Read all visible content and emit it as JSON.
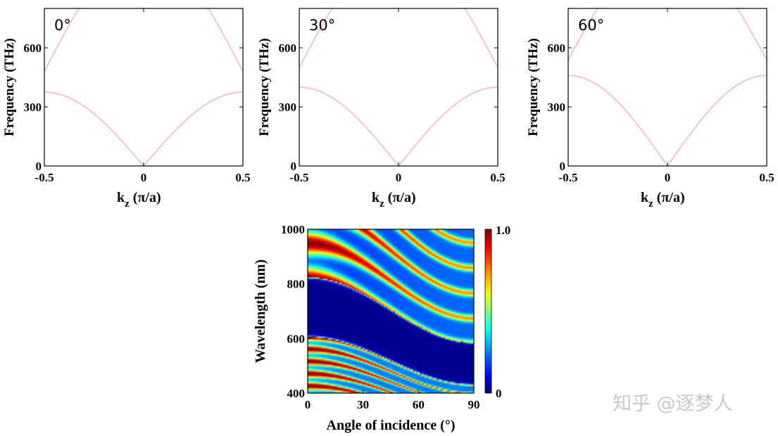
{
  "chart_data": [
    {
      "type": "line",
      "panel_label": "0°",
      "xlabel_main": "k",
      "xlabel_sub": "z",
      "xlabel_rest": "(π/a)",
      "ylabel": "Frequency (THz)",
      "xlim": [
        -0.5,
        0.5
      ],
      "ylim": [
        0,
        800
      ],
      "xticks": [
        -0.5,
        0,
        0.5
      ],
      "xtick_labels": [
        "-0.5",
        "0",
        "0.5"
      ],
      "yticks": [
        0,
        300,
        600
      ],
      "ytick_labels": [
        "0",
        "300",
        "600"
      ],
      "line_color": "#f4b6c8",
      "bands": {
        "gap_low": 375,
        "gap_high": 480,
        "zone_edge_top": 800
      }
    },
    {
      "type": "line",
      "panel_label": "30°",
      "xlabel_main": "k",
      "xlabel_sub": "z",
      "xlabel_rest": "(π/a)",
      "ylabel": "Frequency (THz)",
      "xlim": [
        -0.5,
        0.5
      ],
      "ylim": [
        0,
        800
      ],
      "xticks": [
        -0.5,
        0,
        0.5
      ],
      "xtick_labels": [
        "-0.5",
        "0",
        "0.5"
      ],
      "yticks": [
        0,
        300,
        600
      ],
      "ytick_labels": [
        "0",
        "300",
        "600"
      ],
      "line_color": "#f4b6c8",
      "bands": {
        "gap_low": 400,
        "gap_high": 500,
        "zone_edge_top": 800
      }
    },
    {
      "type": "line",
      "panel_label": "60°",
      "xlabel_main": "k",
      "xlabel_sub": "z",
      "xlabel_rest": "(π/a)",
      "ylabel": "Frequency (THz)",
      "xlim": [
        -0.5,
        0.5
      ],
      "ylim": [
        0,
        800
      ],
      "xticks": [
        -0.5,
        0,
        0.5
      ],
      "xtick_labels": [
        "-0.5",
        "0",
        "0.5"
      ],
      "yticks": [
        0,
        300,
        600
      ],
      "ytick_labels": [
        "0",
        "300",
        "600"
      ],
      "line_color": "#f4b6c8",
      "bands": {
        "gap_low": 460,
        "gap_high": 540,
        "zone_edge_top": 800
      }
    },
    {
      "type": "heatmap",
      "xlabel": "Angle of incidence (°)",
      "ylabel": "Wavelength (nm)",
      "xlim": [
        0,
        90
      ],
      "ylim": [
        400,
        1000
      ],
      "xticks": [
        0,
        30,
        60,
        90
      ],
      "xtick_labels": [
        "0",
        "30",
        "60",
        "90"
      ],
      "yticks": [
        400,
        600,
        800,
        1000
      ],
      "ytick_labels": [
        "400",
        "600",
        "800",
        "1000"
      ],
      "colorbar": {
        "min": 0,
        "max": 1.0,
        "min_label": "0",
        "max_label": "1.0",
        "colormap": "jet"
      },
      "features": {
        "stopband_edge_short_at_0deg_nm": 605,
        "stopband_edge_long_at_0deg_nm": 825,
        "short_branch_endpoints_at_90deg_nm": [
          458,
          440,
          428,
          415
        ],
        "long_branch_endpoints_at_90deg_nm": [
          955,
          812,
          725
        ]
      }
    }
  ],
  "watermark": "知乎 @逐梦人"
}
